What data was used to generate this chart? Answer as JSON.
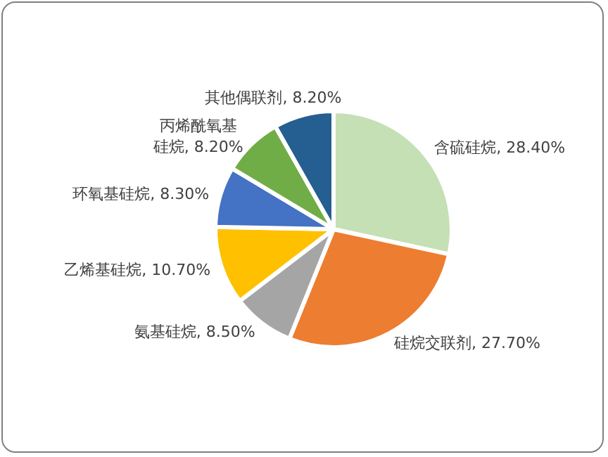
{
  "chart_data": {
    "type": "pie",
    "categories": [
      "含硫硅烷",
      "硅烷交联剂",
      "氨基硅烷",
      "乙烯基硅烷",
      "环氧基硅烷",
      "丙烯酰氧基硅烷",
      "其他偶联剂"
    ],
    "values": [
      28.4,
      27.7,
      8.5,
      10.7,
      8.3,
      8.2,
      8.2
    ],
    "value_labels": [
      "28.40%",
      "27.70%",
      "8.50%",
      "10.70%",
      "8.30%",
      "8.20%",
      "8.20%"
    ],
    "colors": [
      "#c5e0b4",
      "#ed7d31",
      "#a5a5a5",
      "#ffc000",
      "#4472c4",
      "#70ad47",
      "#255e91"
    ],
    "legend": false
  }
}
